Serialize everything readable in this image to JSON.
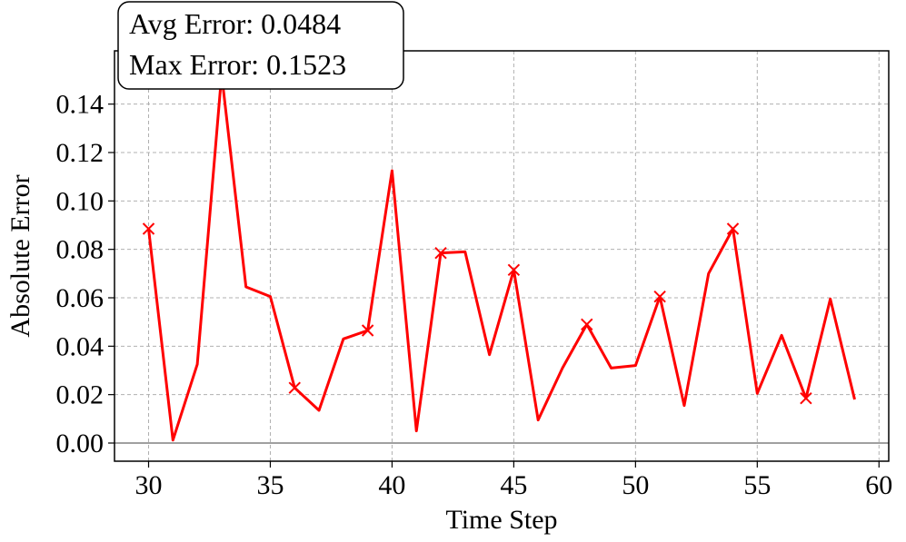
{
  "chart_data": {
    "type": "line",
    "title": "",
    "xlabel": "Time Step",
    "ylabel": "Absolute Error",
    "xlim": [
      28.6,
      60.4
    ],
    "ylim": [
      -0.0075,
      0.162
    ],
    "xticks": [
      30,
      35,
      40,
      45,
      50,
      55,
      60
    ],
    "xtick_labels": [
      "30",
      "35",
      "40",
      "45",
      "50",
      "55",
      "60"
    ],
    "yticks": [
      0.0,
      0.02,
      0.04,
      0.06,
      0.08,
      0.1,
      0.12,
      0.14
    ],
    "ytick_labels": [
      "0.00",
      "0.02",
      "0.04",
      "0.06",
      "0.08",
      "0.10",
      "0.12",
      "0.14"
    ],
    "grid": true,
    "zero_line": true,
    "series": [
      {
        "color": "#ff0000",
        "x": [
          30,
          31,
          32,
          33,
          34,
          35,
          36,
          37,
          38,
          39,
          40,
          41,
          42,
          43,
          44,
          45,
          46,
          47,
          48,
          49,
          50,
          51,
          52,
          53,
          54,
          55,
          56,
          57,
          58,
          59
        ],
        "y": [
          0.0885,
          0.0012,
          0.0325,
          0.1523,
          0.0645,
          0.0605,
          0.0228,
          0.0135,
          0.043,
          0.0465,
          0.1125,
          0.005,
          0.0785,
          0.079,
          0.0365,
          0.0715,
          0.0095,
          0.031,
          0.049,
          0.031,
          0.032,
          0.0605,
          0.0155,
          0.07,
          0.0885,
          0.0205,
          0.0445,
          0.0185,
          0.0595,
          0.018
        ],
        "markers_at": [
          30,
          33,
          36,
          39,
          42,
          45,
          48,
          51,
          54,
          57
        ]
      }
    ],
    "annotation": {
      "lines": [
        "Avg Error: 0.0484",
        "Max Error: 0.1523"
      ]
    }
  }
}
